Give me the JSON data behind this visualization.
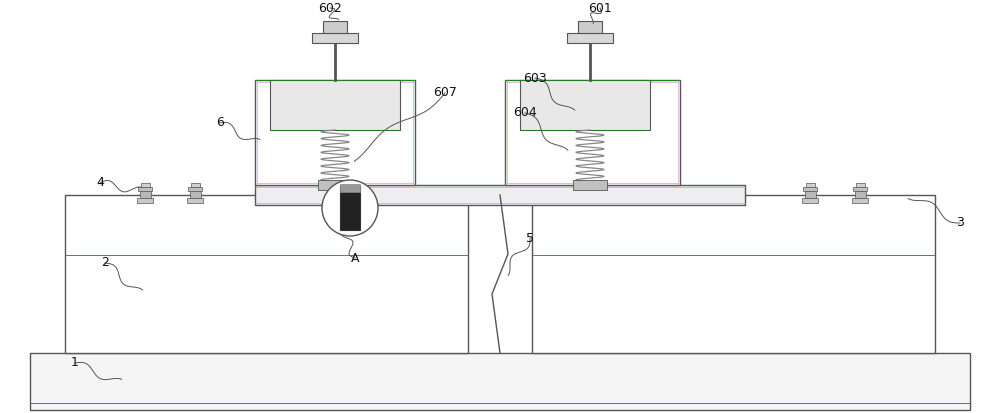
{
  "bg": "#ffffff",
  "lc": "#555555",
  "lc_thin": "#888888",
  "gc": "#009900",
  "purple": "#cc88cc",
  "fig_w": 10.0,
  "fig_h": 4.13,
  "dpi": 100,
  "xlim": [
    0,
    1000
  ],
  "ylim": [
    0,
    413
  ]
}
